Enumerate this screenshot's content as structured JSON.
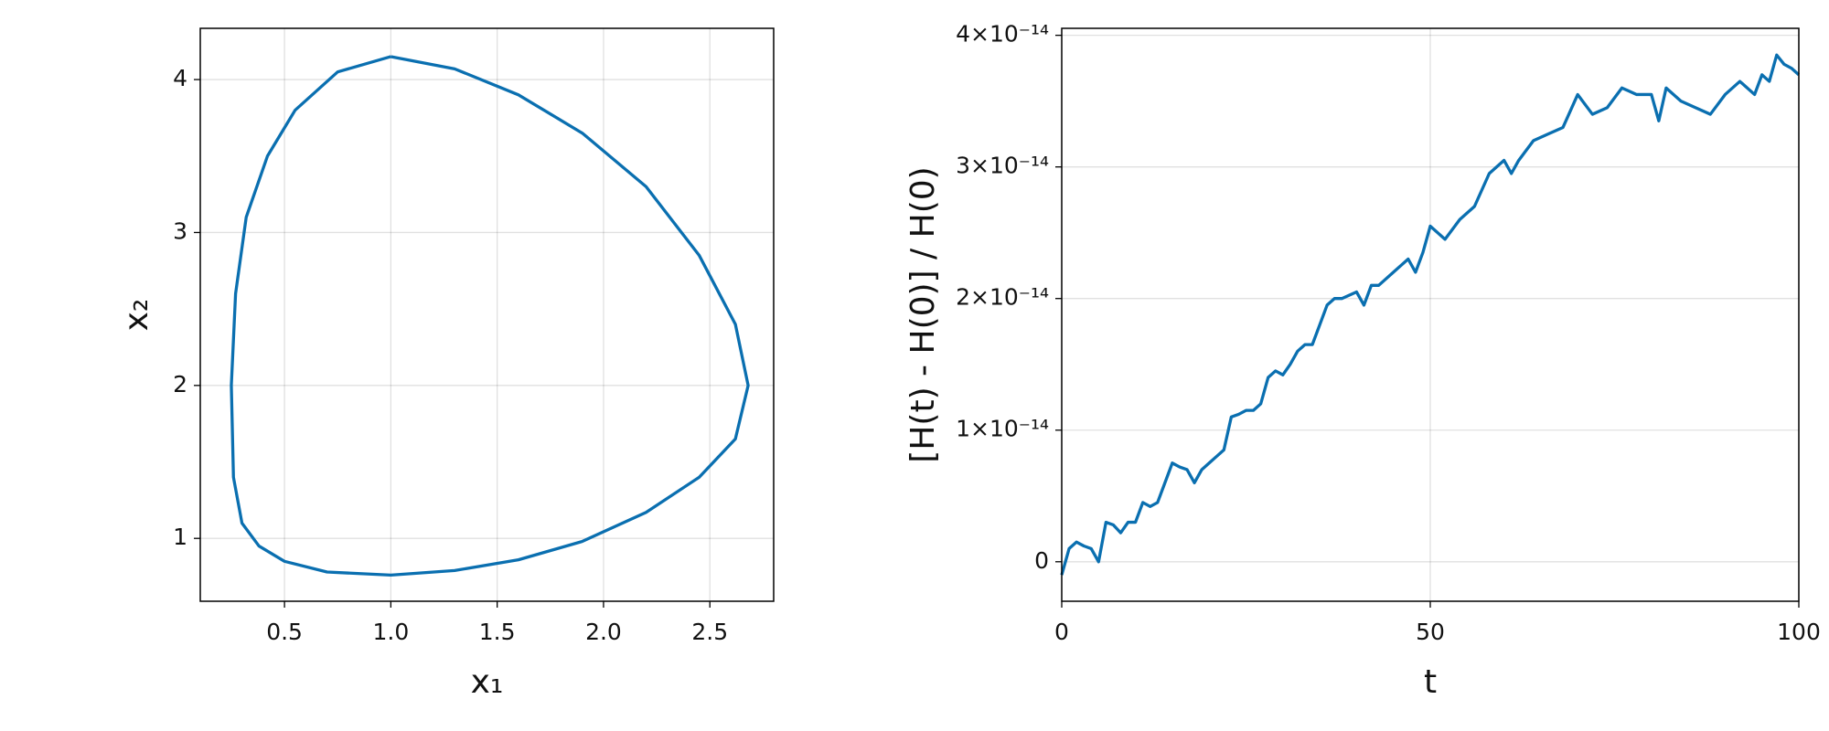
{
  "chart_data": [
    {
      "type": "line",
      "xlabel": "x₁",
      "ylabel": "x₂",
      "color": "#0a6fb0",
      "grid": true,
      "x": [
        1.0,
        1.3,
        1.6,
        1.9,
        2.2,
        2.45,
        2.62,
        2.68,
        2.62,
        2.45,
        2.2,
        1.9,
        1.6,
        1.3,
        1.0,
        0.7,
        0.5,
        0.38,
        0.3,
        0.26,
        0.25,
        0.27,
        0.32,
        0.42,
        0.55,
        0.75,
        1.0
      ],
      "values": [
        4.15,
        4.07,
        3.9,
        3.65,
        3.3,
        2.85,
        2.4,
        2.0,
        1.65,
        1.4,
        1.17,
        0.98,
        0.86,
        0.79,
        0.76,
        0.78,
        0.85,
        0.95,
        1.1,
        1.4,
        2.0,
        2.6,
        3.1,
        3.5,
        3.8,
        4.05,
        4.15
      ],
      "xlim": [
        0.104,
        2.8
      ],
      "ylim": [
        0.589,
        4.335
      ],
      "xticks": [
        0.5,
        {
          "value": 1,
          "label": "1.0"
        },
        1.5,
        {
          "value": 2,
          "label": "2.0"
        },
        2.5
      ],
      "yticks": [
        1,
        2,
        3,
        4
      ]
    },
    {
      "type": "line",
      "xlabel": "t",
      "ylabel": "[H(t) - H(0)] / H(0)",
      "color": "#0a6fb0",
      "grid": true,
      "x": [
        0,
        1,
        2,
        3,
        4,
        5,
        6,
        7,
        8,
        9,
        10,
        11,
        12,
        13,
        14,
        15,
        16,
        17,
        18,
        19,
        20,
        21,
        22,
        23,
        24,
        25,
        26,
        27,
        28,
        29,
        30,
        31,
        32,
        33,
        34,
        35,
        36,
        37,
        38,
        40,
        41,
        42,
        43,
        45,
        46,
        47,
        48,
        49,
        50,
        52,
        54,
        56,
        58,
        60,
        61,
        62,
        64,
        66,
        68,
        70,
        72,
        74,
        76,
        78,
        80,
        81,
        82,
        84,
        86,
        88,
        90,
        92,
        94,
        95,
        96,
        97,
        98,
        99,
        100
      ],
      "values": [
        -1e-15,
        1e-15,
        1.5e-15,
        1.2e-15,
        1e-15,
        0,
        3e-15,
        2.8e-15,
        2.2e-15,
        3e-15,
        3e-15,
        4.5e-15,
        4.2e-15,
        4.5e-15,
        6e-15,
        7.5e-15,
        7.2e-15,
        7e-15,
        6e-15,
        7e-15,
        7.5e-15,
        8e-15,
        8.5e-15,
        1.1e-14,
        1.12e-14,
        1.15e-14,
        1.15e-14,
        1.2e-14,
        1.4e-14,
        1.45e-14,
        1.42e-14,
        1.5e-14,
        1.6e-14,
        1.65e-14,
        1.65e-14,
        1.8e-14,
        1.95e-14,
        2e-14,
        2e-14,
        2.05e-14,
        1.95e-14,
        2.1e-14,
        2.1e-14,
        2.2e-14,
        2.25e-14,
        2.3e-14,
        2.2e-14,
        2.35e-14,
        2.55e-14,
        2.45e-14,
        2.6e-14,
        2.7e-14,
        2.95e-14,
        3.05e-14,
        2.95e-14,
        3.05e-14,
        3.2e-14,
        3.25e-14,
        3.3e-14,
        3.55e-14,
        3.4e-14,
        3.45e-14,
        3.6e-14,
        3.55e-14,
        3.55e-14,
        3.35e-14,
        3.6e-14,
        3.5e-14,
        3.45e-14,
        3.4e-14,
        3.55e-14,
        3.65e-14,
        3.55e-14,
        3.7e-14,
        3.65e-14,
        3.85e-14,
        3.78e-14,
        3.75e-14,
        3.7e-14
      ],
      "xlim": [
        0,
        100
      ],
      "ylim": [
        -3e-15,
        4.053e-14
      ],
      "xticks": [
        0,
        50,
        100
      ],
      "yticks": [
        0,
        {
          "value": 1e-14,
          "label": "1×10⁻¹⁴"
        },
        {
          "value": 2e-14,
          "label": "2×10⁻¹⁴"
        },
        {
          "value": 3e-14,
          "label": "3×10⁻¹⁴"
        },
        {
          "value": 4e-14,
          "label": "4×10⁻¹⁴"
        }
      ]
    }
  ]
}
